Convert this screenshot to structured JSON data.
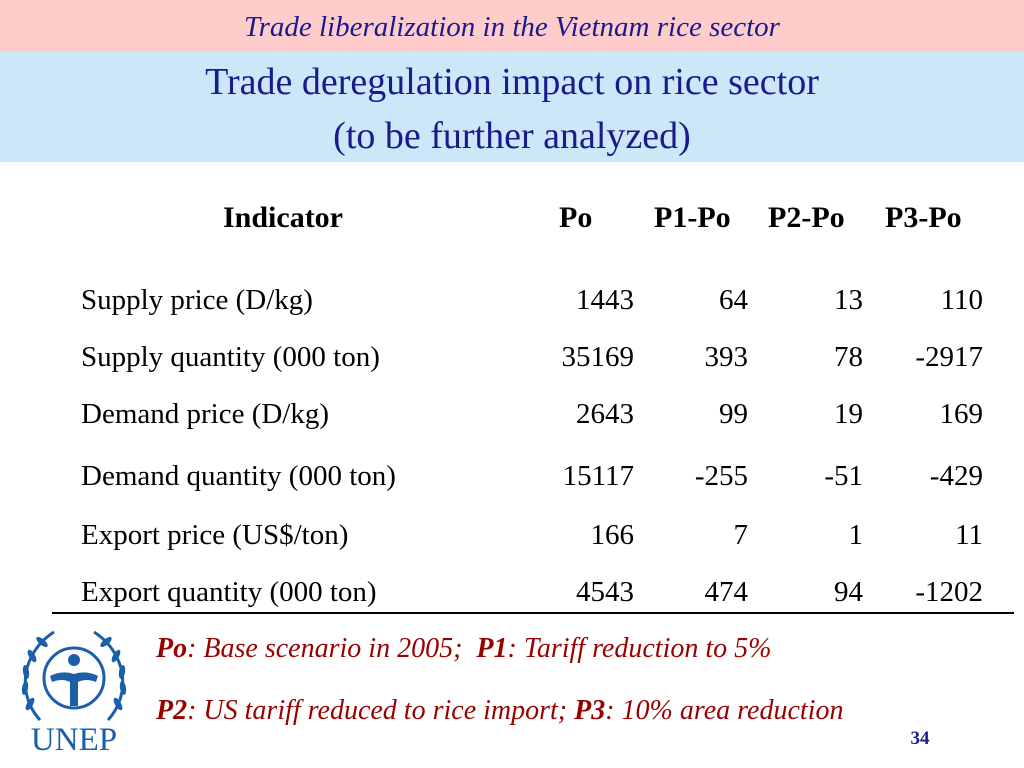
{
  "header": {
    "subtitle": "Trade liberalization in the Vietnam rice sector",
    "title_line1": "Trade deregulation impact on rice sector",
    "title_line2": "(to be further analyzed)"
  },
  "table": {
    "columns": [
      "Indicator",
      "Po",
      "P1-Po",
      "P2-Po",
      "P3-Po"
    ],
    "rows": [
      [
        "Supply price (D/kg)",
        "1443",
        "64",
        "13",
        "110"
      ],
      [
        "Supply quantity (000 ton)",
        "35169",
        "393",
        "78",
        "-2917"
      ],
      [
        "Demand price (D/kg)",
        "2643",
        "99",
        "19",
        "169"
      ],
      [
        "Demand quantity (000 ton)",
        "15117",
        "-255",
        "-51",
        "-429"
      ],
      [
        "Export price (US$/ton)",
        "166",
        "7",
        "1",
        "11"
      ],
      [
        "Export quantity (000 ton)",
        "4543",
        "474",
        "94",
        "-1202"
      ]
    ]
  },
  "notes": {
    "p0_key": "Po",
    "p0_text": ": Base scenario in 2005;",
    "p1_key": "P1",
    "p1_text": ": Tariff reduction to 5%",
    "p2_key": "P2",
    "p2_text": ": US tariff reduced to rice import;",
    "p3_key": "P3",
    "p3_text": ": 10% area reduction"
  },
  "logo": {
    "text": "UNEP",
    "icon": "unep-emblem-icon"
  },
  "page_number": "34",
  "colors": {
    "title": "#1a1a8c",
    "notes": "#990000",
    "top_band": "#ffcccc",
    "title_band": "#cce8f8"
  }
}
